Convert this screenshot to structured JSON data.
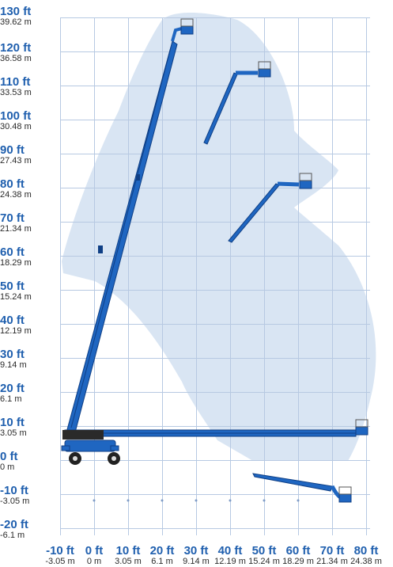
{
  "diagram": {
    "type": "working-envelope",
    "y_axis_ticks": [
      {
        "ft": "130 ft",
        "m": "39.62 m"
      },
      {
        "ft": "120 ft",
        "m": "36.58 m"
      },
      {
        "ft": "110 ft",
        "m": "33.53 m"
      },
      {
        "ft": "100 ft",
        "m": "30.48 m"
      },
      {
        "ft": "90 ft",
        "m": "27.43 m"
      },
      {
        "ft": "80 ft",
        "m": "24.38 m"
      },
      {
        "ft": "70 ft",
        "m": "21.34 m"
      },
      {
        "ft": "60 ft",
        "m": "18.29 m"
      },
      {
        "ft": "50 ft",
        "m": "15.24 m"
      },
      {
        "ft": "40 ft",
        "m": "12.19 m"
      },
      {
        "ft": "30 ft",
        "m": "9.14 m"
      },
      {
        "ft": "20 ft",
        "m": "6.1 m"
      },
      {
        "ft": "10 ft",
        "m": "3.05 m"
      },
      {
        "ft": "0 ft",
        "m": "0 m"
      },
      {
        "ft": "-10 ft",
        "m": "-3.05 m"
      },
      {
        "ft": "-20 ft",
        "m": "-6.1 m"
      }
    ],
    "x_axis_ticks": [
      {
        "ft": "-10 ft",
        "m": "-3.05 m"
      },
      {
        "ft": "0 ft",
        "m": "0 m"
      },
      {
        "ft": "10 ft",
        "m": "3.05 m"
      },
      {
        "ft": "20 ft",
        "m": "6.1 m"
      },
      {
        "ft": "30 ft",
        "m": "9.14 m"
      },
      {
        "ft": "40 ft",
        "m": "12.19 m"
      },
      {
        "ft": "50 ft",
        "m": "15.24 m"
      },
      {
        "ft": "60 ft",
        "m": "18.29 m"
      },
      {
        "ft": "70 ft",
        "m": "21.34 m"
      },
      {
        "ft": "80 ft",
        "m": "24.38 m"
      }
    ],
    "colors": {
      "envelope": "#d9e5f3",
      "grid": "#b7c9e2",
      "boom": "#1f66c1",
      "boom_outline": "#0f3f85",
      "label_ft": "#1f5fae",
      "label_m": "#2a2a2a"
    }
  }
}
